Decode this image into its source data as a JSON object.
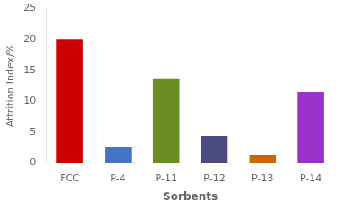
{
  "chart_data": {
    "type": "bar",
    "categories": [
      "FCC",
      "P-4",
      "P-11",
      "P-12",
      "P-13",
      "P-14"
    ],
    "values": [
      20.0,
      2.5,
      13.7,
      4.4,
      1.3,
      11.5
    ],
    "colors": [
      "#cc0000",
      "#4472c4",
      "#6b8e23",
      "#4b4b7f",
      "#cc6600",
      "#9933cc"
    ],
    "xlabel": "Sorbents",
    "ylabel": "Attrition Index/%",
    "ylim": [
      0,
      25
    ],
    "yticks": [
      0,
      5,
      10,
      15,
      20,
      25
    ],
    "grid": false
  }
}
